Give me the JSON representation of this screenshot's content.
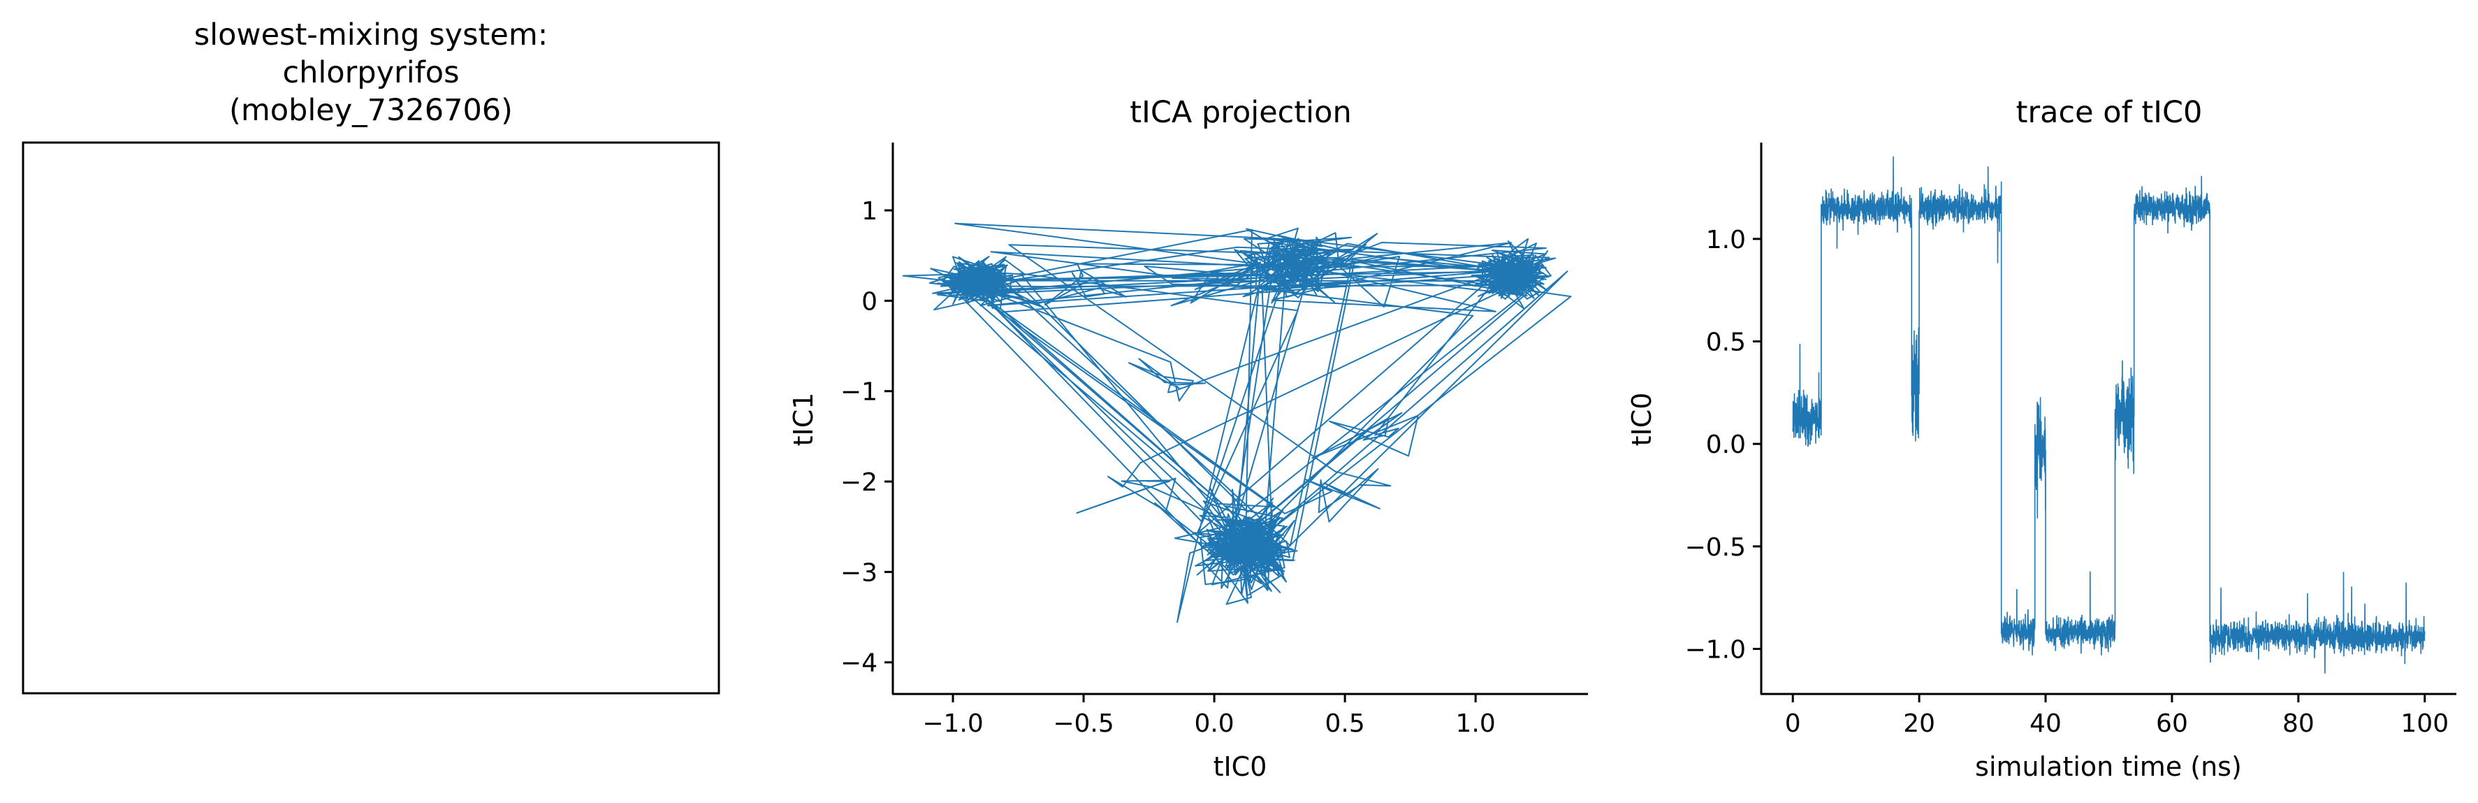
{
  "figure": {
    "colors": {
      "series": "#1f77b4",
      "axis": "#000000",
      "background": "#ffffff"
    }
  },
  "chart_data": [
    {
      "type": "image",
      "title_lines": [
        "slowest-mixing system:",
        "chlorpyrifos",
        "(mobley_7326706)"
      ],
      "content": "empty frame, no axes ticks"
    },
    {
      "type": "line",
      "title": "tICA projection",
      "xlabel": "tIC0",
      "ylabel": "tIC1",
      "xlim": [
        -1.23,
        1.43
      ],
      "ylim": [
        -4.35,
        1.75
      ],
      "xticks": [
        -1.0,
        -0.5,
        0.0,
        0.5,
        1.0
      ],
      "xtick_labels": [
        "−1.0",
        "−0.5",
        "0.0",
        "0.5",
        "1.0"
      ],
      "yticks": [
        1,
        0,
        -1,
        -2,
        -3,
        -4
      ],
      "ytick_labels": [
        "1",
        "0",
        "−1",
        "−2",
        "−3",
        "−4"
      ],
      "grid": false,
      "series": [
        {
          "clusters": [
            {
              "center": [
                -0.9,
                0.22
              ],
              "spread": [
                0.12,
                0.2
              ]
            },
            {
              "center": [
                1.15,
                0.3
              ],
              "spread": [
                0.1,
                0.2
              ]
            },
            {
              "center": [
                0.12,
                -2.7
              ],
              "spread": [
                0.15,
                0.35
              ]
            },
            {
              "center": [
                0.3,
                0.38
              ],
              "spread": [
                0.16,
                0.28
              ]
            }
          ],
          "x": [
            -0.9,
            -0.5,
            0.0,
            0.3,
            0.55,
            1.15,
            0.6,
            0.12,
            -0.3,
            -0.9,
            -0.15,
            0.12,
            0.5,
            1.15
          ],
          "y": [
            0.22,
            0.25,
            0.2,
            0.4,
            0.45,
            0.3,
            -1.4,
            -2.7,
            -2.0,
            0.22,
            -0.8,
            -2.7,
            -2.1,
            0.3
          ]
        }
      ]
    },
    {
      "type": "line",
      "title": "trace of tIC0",
      "xlabel": "simulation time (ns)",
      "ylabel": "tIC0",
      "xlim": [
        -5,
        105
      ],
      "ylim": [
        -1.22,
        1.47
      ],
      "xticks": [
        0,
        20,
        40,
        60,
        80,
        100
      ],
      "xtick_labels": [
        "0",
        "20",
        "40",
        "60",
        "80",
        "100"
      ],
      "yticks": [
        1.0,
        0.5,
        0.0,
        -0.5,
        -1.0
      ],
      "ytick_labels": [
        "1.0",
        "0.5",
        "0.0",
        "−0.5",
        "−1.0"
      ],
      "grid": false,
      "series": [
        {
          "segments": [
            {
              "x": [
                0,
                4.5
              ],
              "level": 0.12,
              "noise": 0.1
            },
            {
              "x": [
                4.5,
                18.8
              ],
              "level": 1.15,
              "noise": 0.06
            },
            {
              "x": [
                18.8,
                20
              ],
              "level": 0.3,
              "noise": 0.25
            },
            {
              "x": [
                20,
                33
              ],
              "level": 1.15,
              "noise": 0.06
            },
            {
              "x": [
                33,
                38.3
              ],
              "level": -0.92,
              "noise": 0.06
            },
            {
              "x": [
                38.3,
                40
              ],
              "level": 0.0,
              "noise": 0.2
            },
            {
              "x": [
                40,
                51
              ],
              "level": -0.92,
              "noise": 0.06
            },
            {
              "x": [
                51,
                54
              ],
              "level": 0.15,
              "noise": 0.15
            },
            {
              "x": [
                54,
                66
              ],
              "level": 1.15,
              "noise": 0.06
            },
            {
              "x": [
                66,
                100
              ],
              "level": -0.94,
              "noise": 0.06
            }
          ]
        }
      ]
    }
  ]
}
